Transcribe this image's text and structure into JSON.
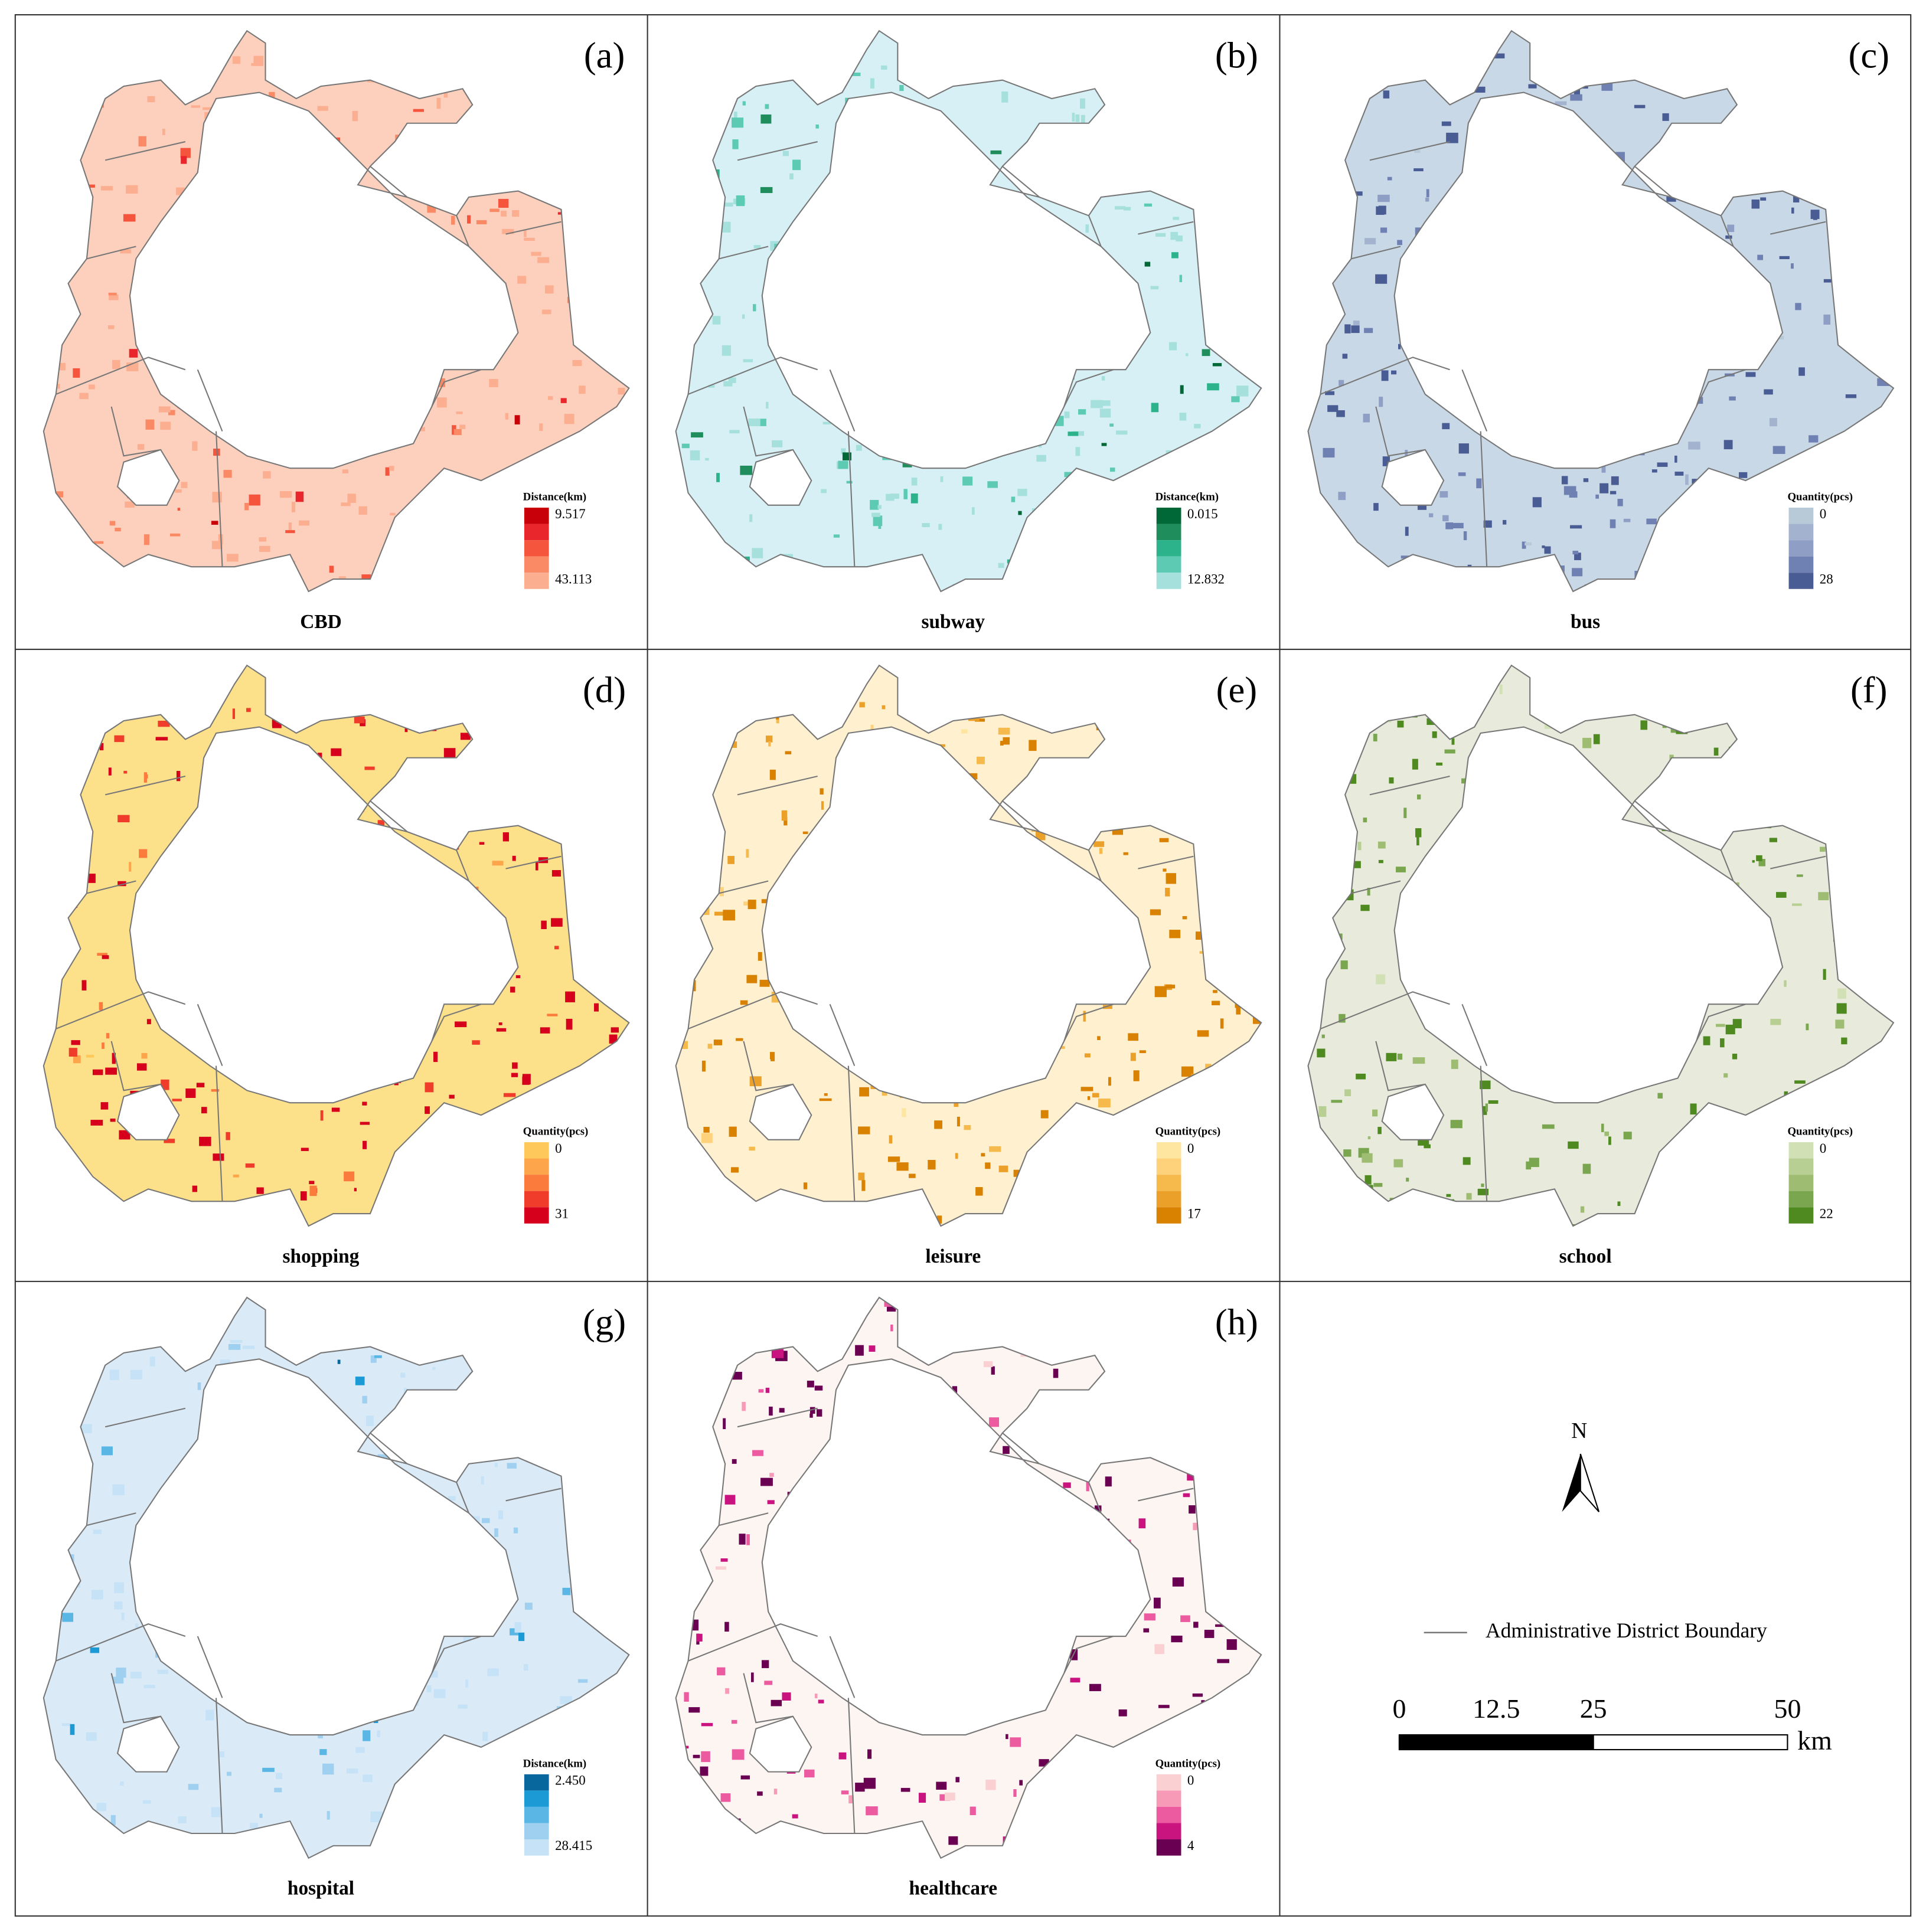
{
  "panels": [
    {
      "letter": "(a)",
      "title": "CBD",
      "legend_title": "Distance(km)",
      "legend_top": "9.517",
      "legend_bottom": "43.113",
      "base_color": "#fdd0bd",
      "colors": [
        "#c8000a",
        "#e8262b",
        "#f5553d",
        "#fa8a66",
        "#fcae91"
      ]
    },
    {
      "letter": "(b)",
      "title": "subway",
      "legend_title": "Distance(km)",
      "legend_top": "0.015",
      "legend_bottom": "12.832",
      "base_color": "#d6f0f5",
      "colors": [
        "#006837",
        "#1f8e5c",
        "#2db38b",
        "#5dcbb4",
        "#a5e0dc"
      ]
    },
    {
      "letter": "(c)",
      "title": "bus",
      "legend_title": "Quantity(pcs)",
      "legend_top": "0",
      "legend_bottom": "28",
      "base_color": "#c9d8e6",
      "colors": [
        "#b8c9d8",
        "#a3b3cf",
        "#8e9ec4",
        "#6f80b3",
        "#4a5c94"
      ]
    },
    {
      "letter": "(d)",
      "title": "shopping",
      "legend_title": "Quantity(pcs)",
      "legend_top": "0",
      "legend_bottom": "31",
      "base_color": "#fde08a",
      "colors": [
        "#fec95a",
        "#fca54a",
        "#fb7b3c",
        "#f03c2a",
        "#d6001c"
      ]
    },
    {
      "letter": "(e)",
      "title": "leisure",
      "legend_title": "Quantity(pcs)",
      "legend_top": "0",
      "legend_bottom": "17",
      "base_color": "#fff0cf",
      "colors": [
        "#fee5a0",
        "#fdd27a",
        "#f6b94c",
        "#eba02a",
        "#d98100"
      ]
    },
    {
      "letter": "(f)",
      "title": "school",
      "legend_title": "Quantity(pcs)",
      "legend_top": "0",
      "legend_bottom": "22",
      "base_color": "#e8ebdc",
      "colors": [
        "#d2e0b6",
        "#b8cf94",
        "#9ebd72",
        "#7aa64f",
        "#4f8a21"
      ]
    },
    {
      "letter": "(g)",
      "title": "hospital",
      "legend_title": "Distance(km)",
      "legend_top": "2.450",
      "legend_bottom": "28.415",
      "base_color": "#dbeaf7",
      "colors": [
        "#08689e",
        "#1b9ad6",
        "#5ab6e4",
        "#9fd0ef",
        "#c5e2f7"
      ]
    },
    {
      "letter": "(h)",
      "title": "healthcare",
      "legend_title": "Quantity(pcs)",
      "legend_top": "0",
      "legend_bottom": "4",
      "base_color": "#fdf5f2",
      "colors": [
        "#fbd0d2",
        "#f79ab8",
        "#ec5aa0",
        "#c9137f",
        "#6a0051"
      ]
    }
  ],
  "north_label": "N",
  "boundary_legend": "Administrative District Boundary",
  "scale_bar": {
    "ticks": [
      0,
      12.5,
      25,
      50
    ],
    "xlim": [
      0,
      50
    ],
    "unit": "km"
  }
}
